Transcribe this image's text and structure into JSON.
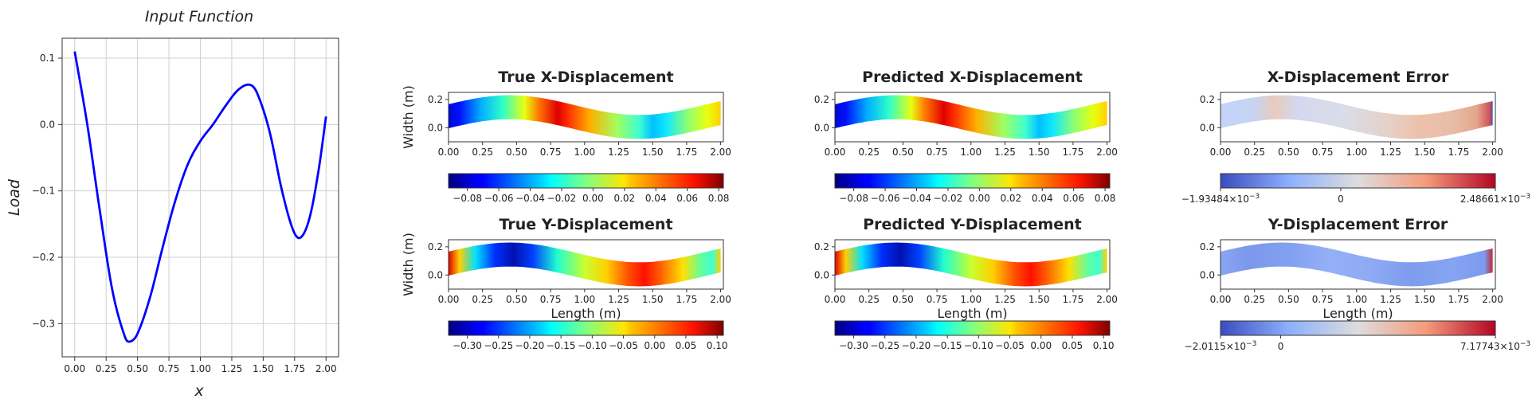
{
  "chart_data": [
    {
      "type": "line",
      "title": "Input Function",
      "xlabel": "x",
      "ylabel": "Load",
      "xlim": [
        -0.1,
        2.1
      ],
      "ylim": [
        -0.35,
        0.13
      ],
      "xticks": [
        "0.00",
        "0.25",
        "0.50",
        "0.75",
        "1.00",
        "1.25",
        "1.50",
        "1.75",
        "2.00"
      ],
      "yticks": [
        "0.1",
        "0.0",
        "−0.1",
        "−0.2",
        "−0.3"
      ],
      "grid": true,
      "color": "#0000ff",
      "x": [
        0.0,
        0.1,
        0.2,
        0.3,
        0.4,
        0.44,
        0.5,
        0.6,
        0.7,
        0.8,
        0.9,
        1.0,
        1.1,
        1.2,
        1.3,
        1.39,
        1.45,
        1.55,
        1.65,
        1.74,
        1.8,
        1.87,
        1.94,
        2.0
      ],
      "y": [
        0.11,
        0.0,
        -0.13,
        -0.25,
        -0.32,
        -0.327,
        -0.315,
        -0.26,
        -0.185,
        -0.115,
        -0.06,
        -0.025,
        0.0,
        0.028,
        0.052,
        0.06,
        0.048,
        -0.01,
        -0.1,
        -0.16,
        -0.17,
        -0.14,
        -0.07,
        0.012
      ]
    },
    {
      "type": "heatmap",
      "title": "True X-Displacement",
      "ylabel": "Width (m)",
      "xticks": [
        "0.00",
        "0.25",
        "0.50",
        "0.75",
        "1.00",
        "1.25",
        "1.50",
        "1.75",
        "2.00"
      ],
      "yticks": [
        "0.2",
        "0.0"
      ],
      "colormap": "jet",
      "colorbar_ticks": [
        "−0.08",
        "−0.06",
        "−0.04",
        "−0.02",
        "0.00",
        "0.02",
        "0.04",
        "0.06",
        "0.08"
      ],
      "clim": [
        -0.092,
        0.083
      ]
    },
    {
      "type": "heatmap",
      "title": "Predicted X-Displacement",
      "xticks": [
        "0.00",
        "0.25",
        "0.50",
        "0.75",
        "1.00",
        "1.25",
        "1.50",
        "1.75",
        "2.00"
      ],
      "yticks": [
        "0.2",
        "0.0"
      ],
      "colormap": "jet",
      "colorbar_ticks": [
        "−0.08",
        "−0.06",
        "−0.04",
        "−0.02",
        "0.00",
        "0.02",
        "0.04",
        "0.06",
        "0.08"
      ],
      "clim": [
        -0.092,
        0.083
      ]
    },
    {
      "type": "heatmap",
      "title": "X-Displacement Error",
      "xticks": [
        "0.00",
        "0.25",
        "0.50",
        "0.75",
        "1.00",
        "1.25",
        "1.50",
        "1.75",
        "2.00"
      ],
      "yticks": [
        "0.2",
        "0.0"
      ],
      "colormap": "coolwarm",
      "colorbar_ticks": [
        {
          "mantissa": "−1.93484",
          "exp": "−3"
        },
        {
          "mantissa": "0",
          "exp": ""
        },
        {
          "mantissa": "2.48661",
          "exp": "−3"
        }
      ],
      "colorbar_base": "×10",
      "clim": [
        -0.00193484,
        0.00248661
      ]
    },
    {
      "type": "heatmap",
      "title": "True Y-Displacement",
      "xlabel": "Length (m)",
      "ylabel": "Width (m)",
      "xticks": [
        "0.00",
        "0.25",
        "0.50",
        "0.75",
        "1.00",
        "1.25",
        "1.50",
        "1.75",
        "2.00"
      ],
      "yticks": [
        "0.2",
        "0.0"
      ],
      "colormap": "jet",
      "colorbar_ticks": [
        "−0.30",
        "−0.25",
        "−0.20",
        "−0.15",
        "−0.10",
        "−0.05",
        "0.00",
        "0.05",
        "0.10"
      ],
      "clim": [
        -0.33,
        0.11
      ]
    },
    {
      "type": "heatmap",
      "title": "Predicted Y-Displacement",
      "xlabel": "Length (m)",
      "xticks": [
        "0.00",
        "0.25",
        "0.50",
        "0.75",
        "1.00",
        "1.25",
        "1.50",
        "1.75",
        "2.00"
      ],
      "yticks": [
        "0.2",
        "0.0"
      ],
      "colormap": "jet",
      "colorbar_ticks": [
        "−0.30",
        "−0.25",
        "−0.20",
        "−0.15",
        "−0.10",
        "−0.05",
        "0.00",
        "0.05",
        "0.10"
      ],
      "clim": [
        -0.33,
        0.11
      ]
    },
    {
      "type": "heatmap",
      "title": "Y-Displacement Error",
      "xlabel": "Length (m)",
      "xticks": [
        "0.00",
        "0.25",
        "0.50",
        "0.75",
        "1.00",
        "1.25",
        "1.50",
        "1.75",
        "2.00"
      ],
      "yticks": [
        "0.2",
        "0.0"
      ],
      "colormap": "coolwarm",
      "colorbar_ticks": [
        {
          "mantissa": "−2.0115",
          "exp": "−3"
        },
        {
          "mantissa": "0",
          "exp": ""
        },
        {
          "mantissa": "7.17743",
          "exp": "−3"
        }
      ],
      "colorbar_base": "×10",
      "clim": [
        -0.0020115,
        0.00717743
      ]
    }
  ]
}
